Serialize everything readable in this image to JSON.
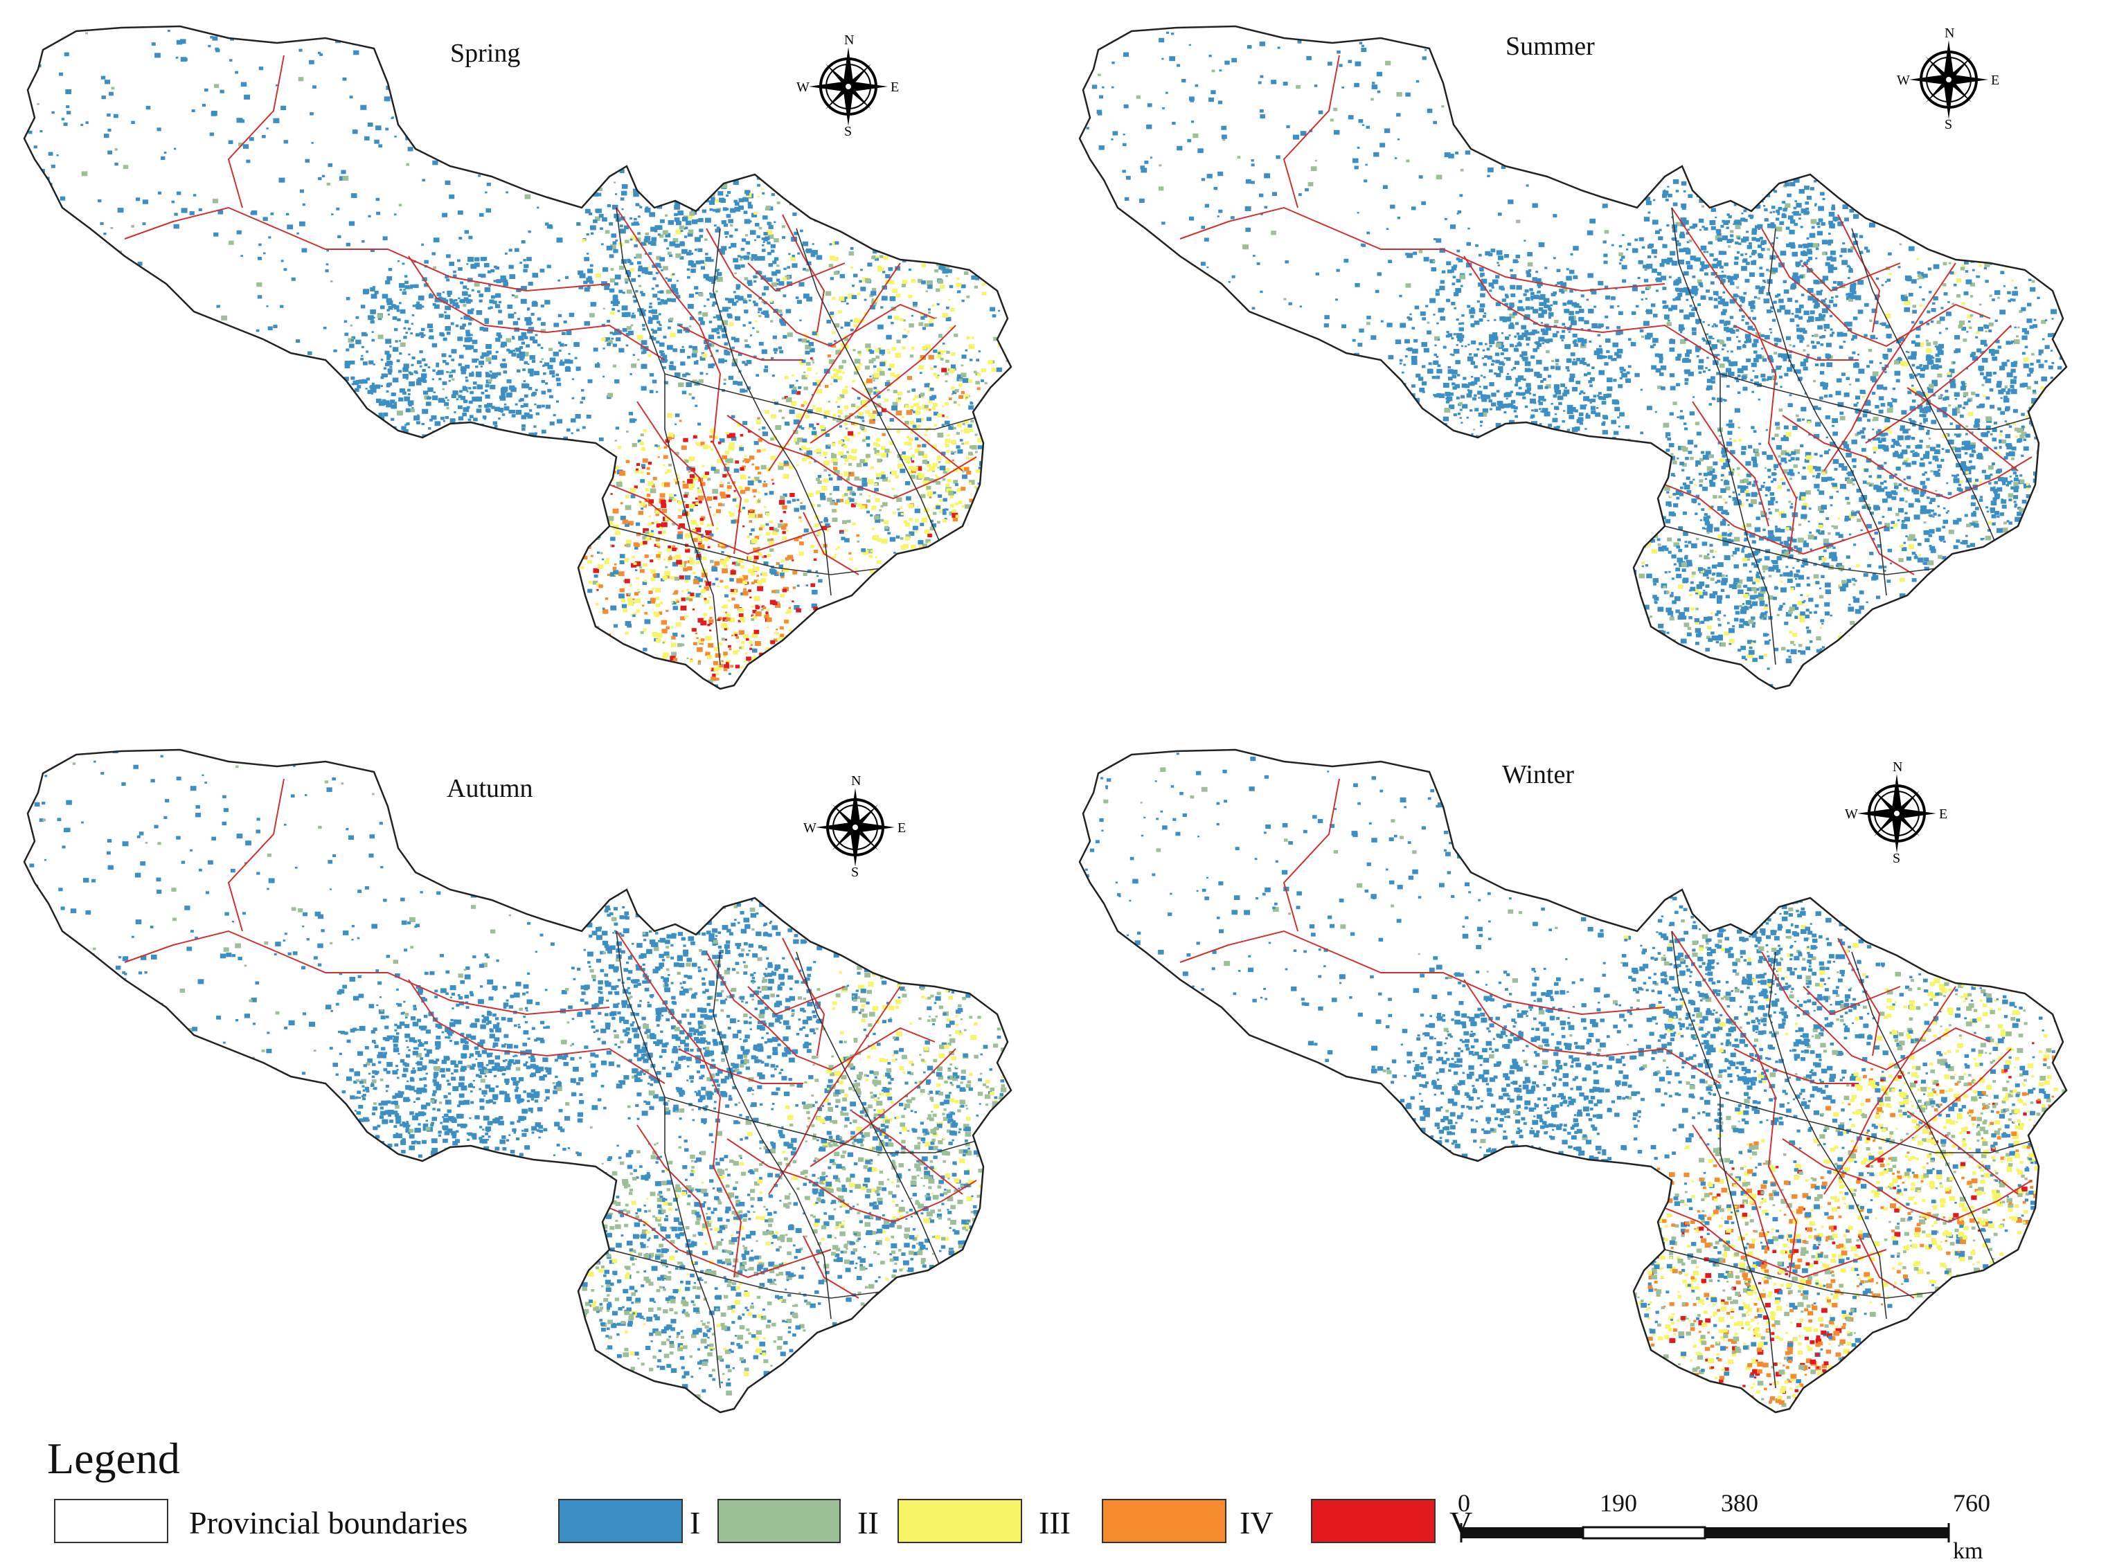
{
  "panels": [
    {
      "id": "spring",
      "title": "Spring"
    },
    {
      "id": "summer",
      "title": "Summer"
    },
    {
      "id": "autumn",
      "title": "Autumn"
    },
    {
      "id": "winter",
      "title": "Winter"
    }
  ],
  "compass": {
    "n": "N",
    "s": "S",
    "e": "E",
    "w": "W"
  },
  "legend": {
    "title": "Legend",
    "boundary_label": "Provincial boundaries",
    "classes": [
      {
        "label": "I",
        "color": "#3b8fc4"
      },
      {
        "label": "II",
        "color": "#9dbf97"
      },
      {
        "label": "III",
        "color": "#f7f466"
      },
      {
        "label": "IV",
        "color": "#f58a2e"
      },
      {
        "label": "V",
        "color": "#e3191d"
      }
    ]
  },
  "scalebar": {
    "ticks": [
      "0",
      "190",
      "380",
      "760"
    ],
    "unit": "km"
  },
  "colors": {
    "outline": "#222222",
    "provincial_line": "#d03030"
  }
}
